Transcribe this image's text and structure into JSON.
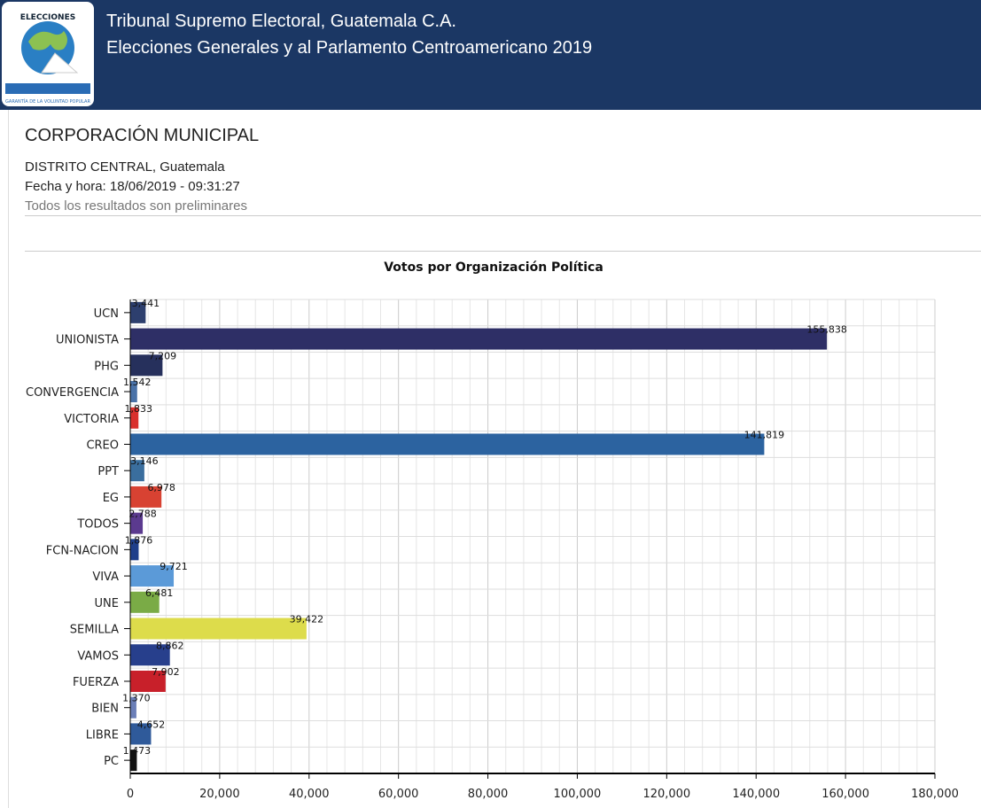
{
  "header": {
    "line1": "Tribunal Supremo Electoral, Guatemala C.A.",
    "line2": "Elecciones Generales y al Parlamento Centroamericano 2019",
    "logo_text": "Elecciones Generales 2019 - Tribunal Supremo Electoral Guatemala C.A. - Garantía de la voluntad popular"
  },
  "page": {
    "title": "CORPORACIÓN MUNICIPAL",
    "location": "DISTRITO CENTRAL, Guatemala",
    "datetime": "Fecha y hora: 18/06/2019 - 09:31:27",
    "note": "Todos los resultados son preliminares"
  },
  "chart_data": {
    "type": "bar",
    "orientation": "horizontal",
    "title": "Votos por Organización Política",
    "categories": [
      "UCN",
      "UNIONISTA",
      "PHG",
      "CONVERGENCIA",
      "VICTORIA",
      "CREO",
      "PPT",
      "EG",
      "TODOS",
      "FCN-NACION",
      "VIVA",
      "UNE",
      "SEMILLA",
      "VAMOS",
      "FUERZA",
      "BIEN",
      "LIBRE",
      "PC"
    ],
    "values": [
      3441,
      155838,
      7209,
      1542,
      1833,
      141819,
      3146,
      6978,
      2788,
      1876,
      9721,
      6481,
      39422,
      8862,
      7902,
      1370,
      4652,
      1473
    ],
    "labels": [
      "3,441",
      "155,838",
      "7,209",
      "1,542",
      "1,833",
      "141,819",
      "3,146",
      "6,978",
      "2,788",
      "1,876",
      "9,721",
      "6,481",
      "39,422",
      "8,862",
      "7,902",
      "1,370",
      "4,652",
      "1,473"
    ],
    "colors": [
      "#2d3f6e",
      "#2e2f66",
      "#26305c",
      "#4a72a8",
      "#d9302d",
      "#2c63a0",
      "#3a6e9e",
      "#d84232",
      "#5b3a8f",
      "#1f3f8a",
      "#5b9ad8",
      "#7aab46",
      "#dddc4b",
      "#273f8c",
      "#c8202a",
      "#6b7fb8",
      "#2f5a9a",
      "#111111"
    ],
    "xlim": [
      0,
      180000
    ],
    "xticks": [
      "0",
      "20,000",
      "40,000",
      "60,000",
      "80,000",
      "100,000",
      "120,000",
      "140,000",
      "160,000",
      "180,000"
    ],
    "grid": true
  }
}
